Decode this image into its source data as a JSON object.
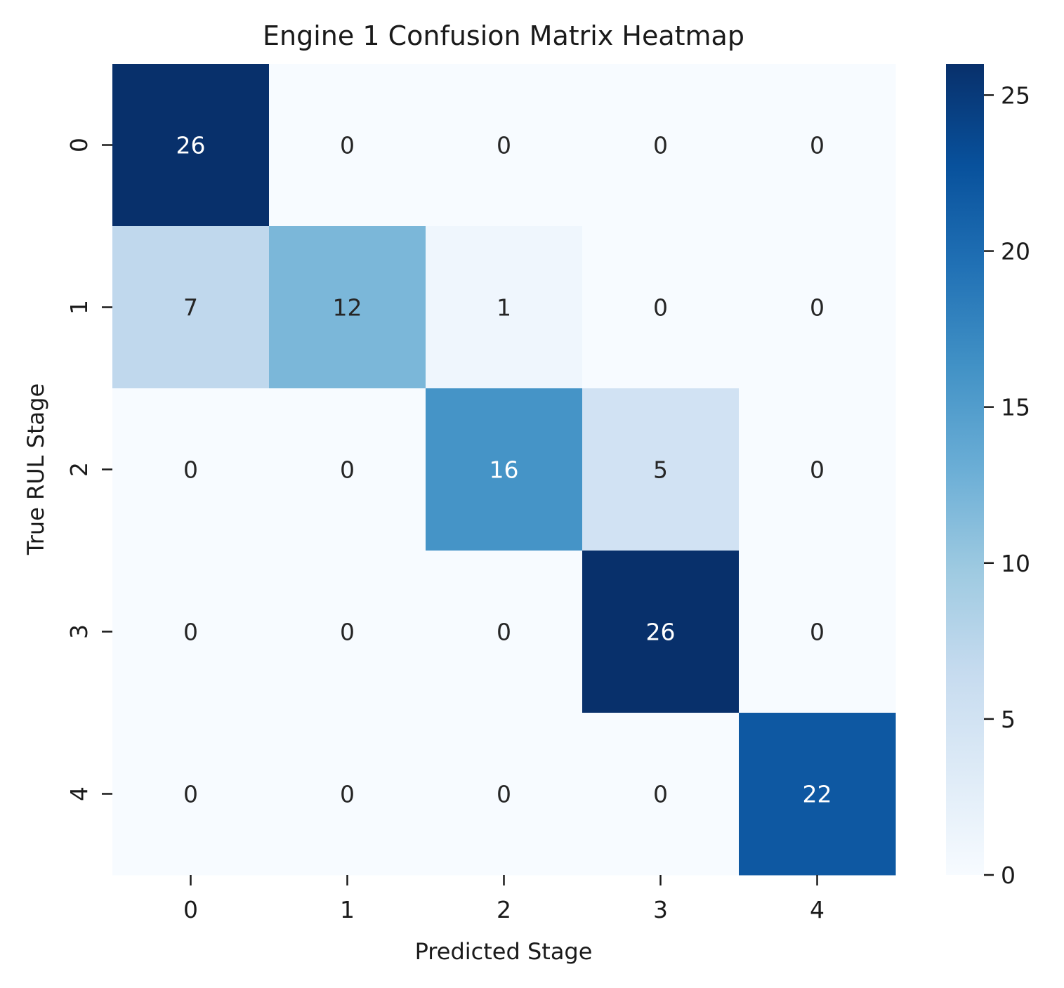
{
  "chart_data": {
    "type": "heatmap",
    "title": "Engine 1 Confusion Matrix Heatmap",
    "xlabel": "Predicted Stage",
    "ylabel": "True RUL Stage",
    "x_categories": [
      "0",
      "1",
      "2",
      "3",
      "4"
    ],
    "y_categories": [
      "0",
      "1",
      "2",
      "3",
      "4"
    ],
    "values": [
      [
        26,
        0,
        0,
        0,
        0
      ],
      [
        7,
        12,
        1,
        0,
        0
      ],
      [
        0,
        0,
        16,
        5,
        0
      ],
      [
        0,
        0,
        0,
        26,
        0
      ],
      [
        0,
        0,
        0,
        0,
        22
      ]
    ],
    "colormap": "Blues",
    "value_range": [
      0,
      26
    ],
    "colorbar": {
      "ticks": [
        0,
        5,
        10,
        15,
        20,
        25
      ],
      "tick_labels": [
        "0",
        "5",
        "10",
        "15",
        "20",
        "25"
      ]
    },
    "annotations": true
  }
}
